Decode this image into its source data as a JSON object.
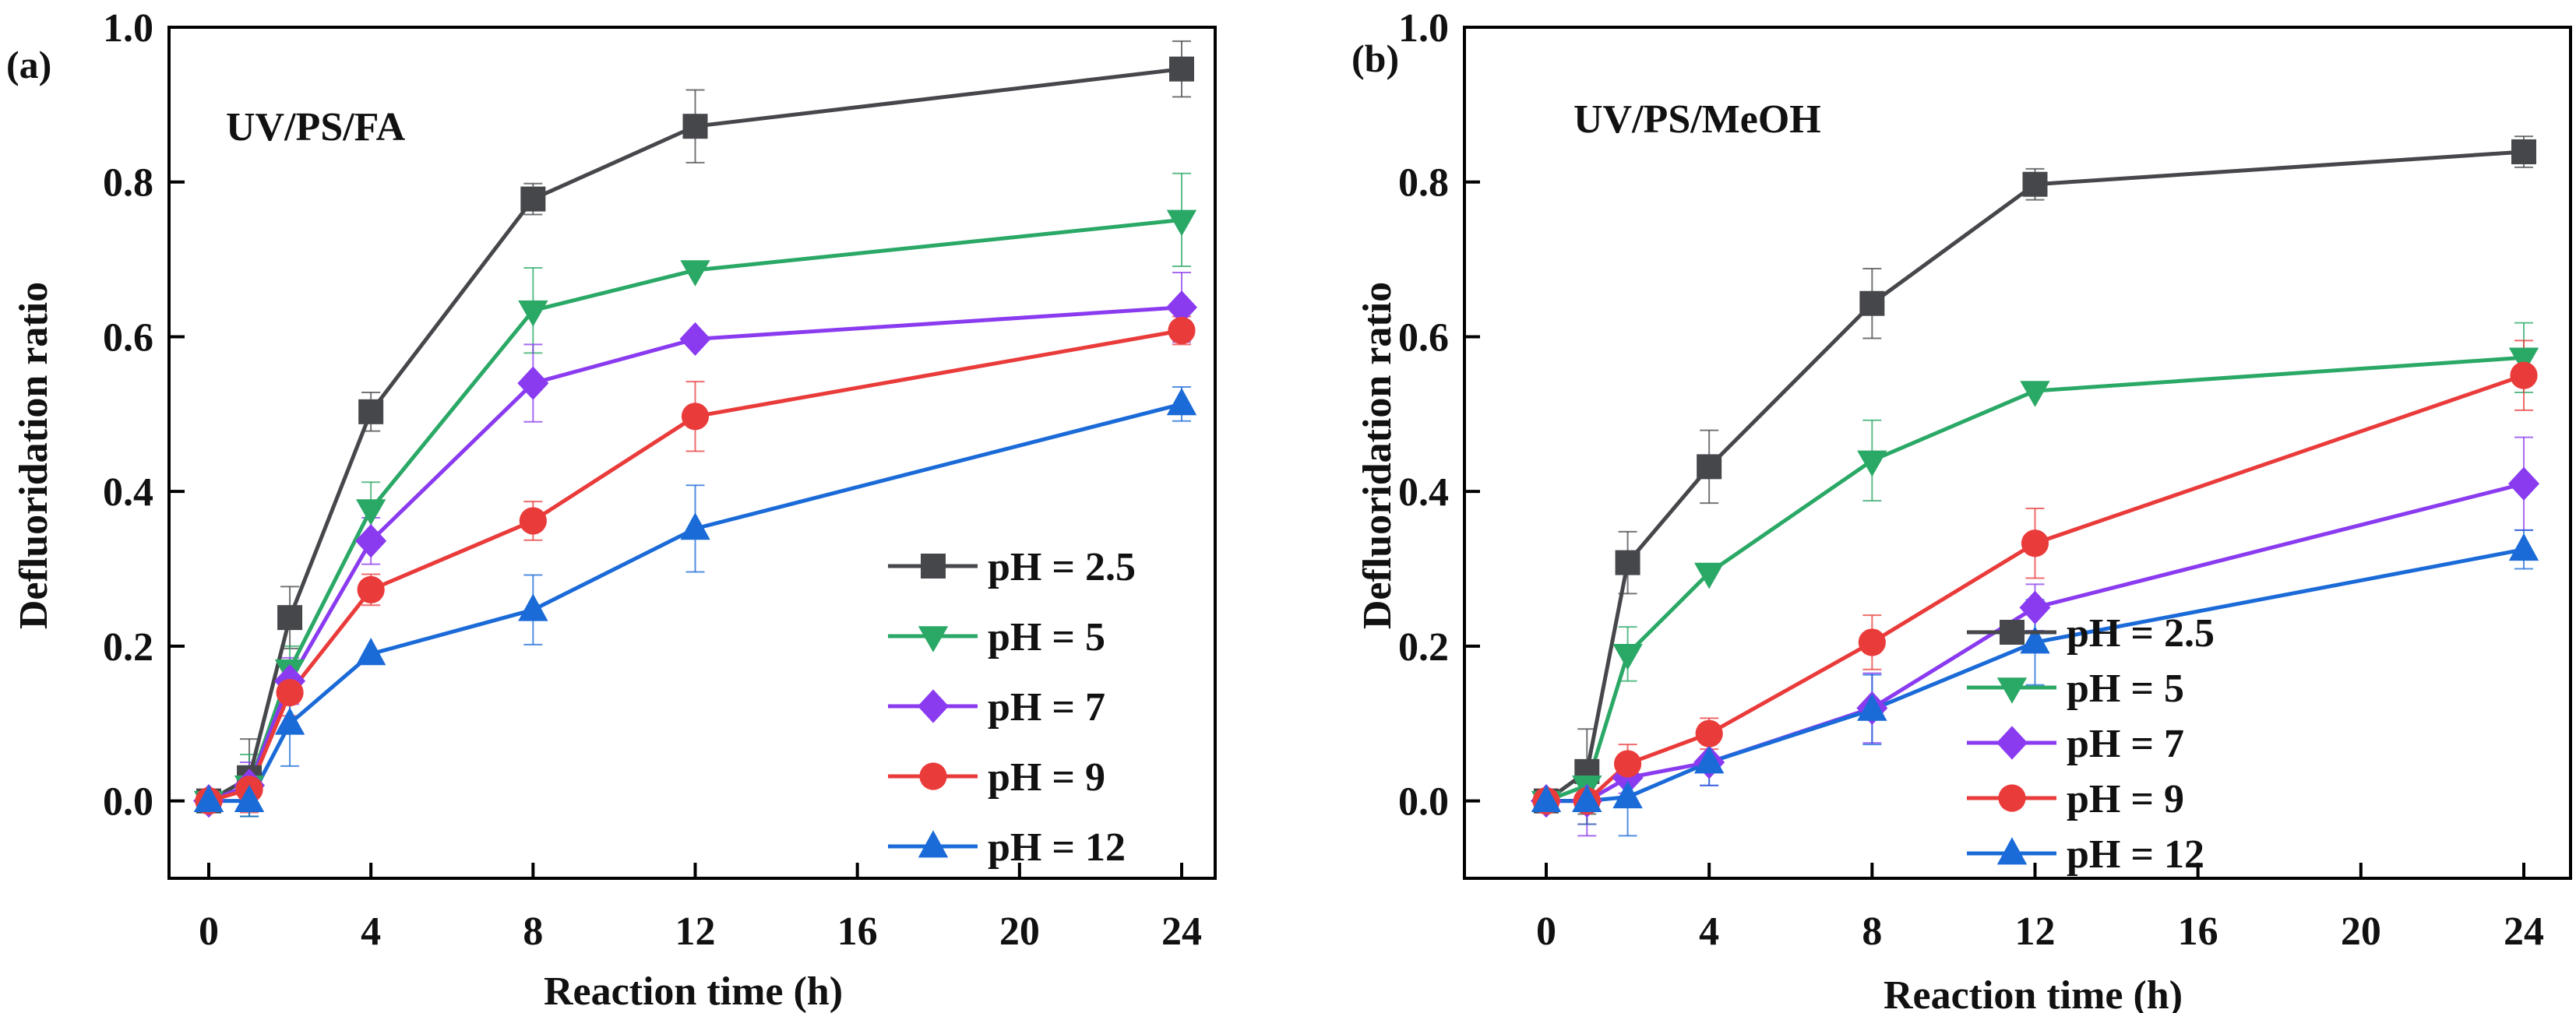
{
  "chart_data": [
    {
      "type": "line",
      "panel_label": "(a)",
      "annotation": "UV/PS/FA",
      "title": "",
      "xlabel": "Reaction time (h)",
      "ylabel": "Defluoridation ratio",
      "xlim": [
        -1.5,
        25
      ],
      "ylim": [
        -0.1,
        1.0
      ],
      "xticks": [
        0,
        4,
        8,
        12,
        16,
        20,
        24
      ],
      "yticks": [
        0.0,
        0.2,
        0.4,
        0.6,
        0.8,
        1.0
      ],
      "xtick_labels": [
        "0",
        "4",
        "8",
        "12",
        "16",
        "20",
        "24"
      ],
      "ytick_labels": [
        "0.0",
        "0.2",
        "0.4",
        "0.6",
        "0.8",
        "1.0"
      ],
      "grid": false,
      "legend_position": "lower-right",
      "x": [
        0,
        1,
        2,
        4,
        8,
        12,
        24
      ],
      "series": [
        {
          "name": "pH = 2.5",
          "marker": "square",
          "color": "#46474B",
          "values": [
            0.0,
            0.03,
            0.237,
            0.503,
            0.778,
            0.872,
            0.946
          ],
          "errors": [
            0.0,
            0.05,
            0.04,
            0.025,
            0.02,
            0.047,
            0.036
          ]
        },
        {
          "name": "pH = 5",
          "marker": "triangle-down",
          "color": "#2AA866",
          "values": [
            0.0,
            0.02,
            0.17,
            0.377,
            0.634,
            0.686,
            0.751
          ],
          "errors": [
            0.0,
            0.04,
            0.03,
            0.035,
            0.055,
            0.0,
            0.06
          ]
        },
        {
          "name": "pH = 7",
          "marker": "diamond",
          "color": "#8A3BF0",
          "values": [
            0.0,
            0.02,
            0.155,
            0.336,
            0.54,
            0.597,
            0.638
          ],
          "errors": [
            0.0,
            0.03,
            0.03,
            0.03,
            0.05,
            0.0,
            0.045
          ]
        },
        {
          "name": "pH = 9",
          "marker": "circle",
          "color": "#EA3B3B",
          "values": [
            0.0,
            0.015,
            0.14,
            0.273,
            0.362,
            0.497,
            0.608
          ],
          "errors": [
            0.0,
            0.03,
            0.03,
            0.02,
            0.025,
            0.045,
            0.018
          ]
        },
        {
          "name": "pH = 12",
          "marker": "triangle-up",
          "color": "#1A6AD8",
          "values": [
            0.0,
            0.0,
            0.1,
            0.19,
            0.247,
            0.352,
            0.513
          ],
          "errors": [
            0.0,
            0.02,
            0.055,
            0.0,
            0.045,
            0.056,
            0.022
          ]
        }
      ]
    },
    {
      "type": "line",
      "panel_label": "(b)",
      "annotation": "UV/PS/MeOH",
      "title": "",
      "xlabel": "Reaction time (h)",
      "ylabel": "Defluoridation ratio",
      "xlim": [
        -1.5,
        25
      ],
      "ylim": [
        -0.1,
        1.0
      ],
      "xticks": [
        0,
        4,
        8,
        12,
        16,
        20,
        24
      ],
      "yticks": [
        0.0,
        0.2,
        0.4,
        0.6,
        0.8,
        1.0
      ],
      "xtick_labels": [
        "0",
        "4",
        "8",
        "12",
        "16",
        "20",
        "24"
      ],
      "ytick_labels": [
        "0.0",
        "0.2",
        "0.4",
        "0.6",
        "0.8",
        "1.0"
      ],
      "grid": false,
      "legend_position": "lower-right",
      "x": [
        0,
        1,
        2,
        4,
        8,
        12,
        24
      ],
      "series": [
        {
          "name": "pH = 2.5",
          "marker": "square",
          "color": "#46474B",
          "values": [
            0.0,
            0.038,
            0.308,
            0.432,
            0.643,
            0.797,
            0.839
          ],
          "errors": [
            0.0,
            0.055,
            0.04,
            0.047,
            0.045,
            0.02,
            0.02
          ]
        },
        {
          "name": "pH = 5",
          "marker": "triangle-down",
          "color": "#2AA866",
          "values": [
            0.0,
            0.02,
            0.19,
            0.295,
            0.44,
            0.53,
            0.573
          ],
          "errors": [
            0.0,
            0.03,
            0.035,
            0.0,
            0.052,
            0.0,
            0.045
          ]
        },
        {
          "name": "pH = 7",
          "marker": "diamond",
          "color": "#8A3BF0",
          "values": [
            0.0,
            0.0,
            0.03,
            0.05,
            0.12,
            0.25,
            0.41
          ],
          "errors": [
            0.0,
            0.045,
            0.02,
            0.03,
            0.045,
            0.03,
            0.06
          ]
        },
        {
          "name": "pH = 9",
          "marker": "circle",
          "color": "#EA3B3B",
          "values": [
            0.0,
            0.0,
            0.048,
            0.087,
            0.205,
            0.333,
            0.55
          ],
          "errors": [
            0.0,
            0.03,
            0.025,
            0.02,
            0.035,
            0.045,
            0.045
          ]
        },
        {
          "name": "pH = 12",
          "marker": "triangle-up",
          "color": "#1A6AD8",
          "values": [
            0.0,
            0.0,
            0.005,
            0.05,
            0.118,
            0.205,
            0.325
          ],
          "errors": [
            0.0,
            0.03,
            0.05,
            0.03,
            0.045,
            0.055,
            0.025
          ]
        }
      ]
    }
  ]
}
